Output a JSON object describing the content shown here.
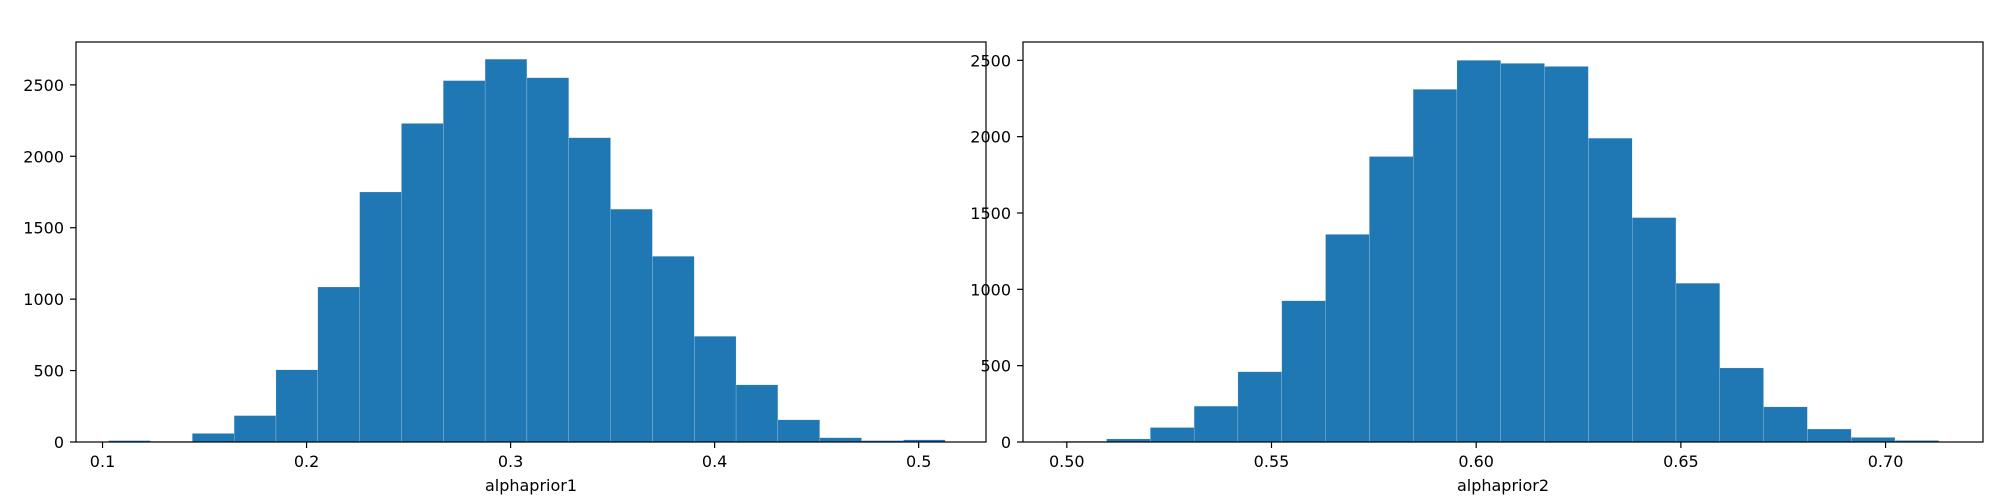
{
  "chart_data": [
    {
      "type": "bar",
      "xlabel": "alphaprior1",
      "ylabel": "",
      "xlim": [
        0.087,
        0.533
      ],
      "ylim": [
        0,
        2800
      ],
      "xticks": [
        0.1,
        0.2,
        0.3,
        0.4,
        0.5
      ],
      "xtick_labels": [
        "0.1",
        "0.2",
        "0.3",
        "0.4",
        "0.5"
      ],
      "yticks": [
        0,
        500,
        1000,
        1500,
        2000,
        2500
      ],
      "ytick_labels": [
        "0",
        "500",
        "1000",
        "1500",
        "2000",
        "2500"
      ],
      "bin_edges": [
        0.103,
        0.1235,
        0.144,
        0.1645,
        0.185,
        0.2055,
        0.226,
        0.2465,
        0.267,
        0.2875,
        0.308,
        0.3285,
        0.349,
        0.3695,
        0.39,
        0.4105,
        0.431,
        0.4515,
        0.472,
        0.4925,
        0.513
      ],
      "values": [
        10,
        5,
        60,
        185,
        505,
        1085,
        1750,
        2230,
        2530,
        2680,
        2550,
        2130,
        1630,
        1300,
        740,
        400,
        155,
        30,
        10,
        15
      ],
      "color": "#1f77b4",
      "grid": false
    },
    {
      "type": "bar",
      "xlabel": "alphaprior2",
      "ylabel": "",
      "xlim": [
        0.4893,
        0.7238
      ],
      "ylim": [
        0,
        2620
      ],
      "xticks": [
        0.5,
        0.55,
        0.6,
        0.65,
        0.7
      ],
      "xtick_labels": [
        "0.50",
        "0.55",
        "0.60",
        "0.65",
        "0.70"
      ],
      "yticks": [
        0,
        500,
        1000,
        1500,
        2000,
        2500
      ],
      "ytick_labels": [
        "0",
        "500",
        "1000",
        "1500",
        "2000",
        "2500"
      ],
      "bin_edges": [
        0.499,
        0.5097,
        0.5204,
        0.5311,
        0.5418,
        0.5525,
        0.5632,
        0.5739,
        0.5846,
        0.5953,
        0.606,
        0.6167,
        0.6274,
        0.6381,
        0.6488,
        0.6595,
        0.6702,
        0.6809,
        0.6916,
        0.7023,
        0.713
      ],
      "values": [
        5,
        20,
        95,
        235,
        460,
        925,
        1360,
        1870,
        2310,
        2500,
        2480,
        2460,
        1990,
        1470,
        1040,
        485,
        230,
        85,
        30,
        10
      ],
      "color": "#1f77b4",
      "grid": false
    }
  ]
}
